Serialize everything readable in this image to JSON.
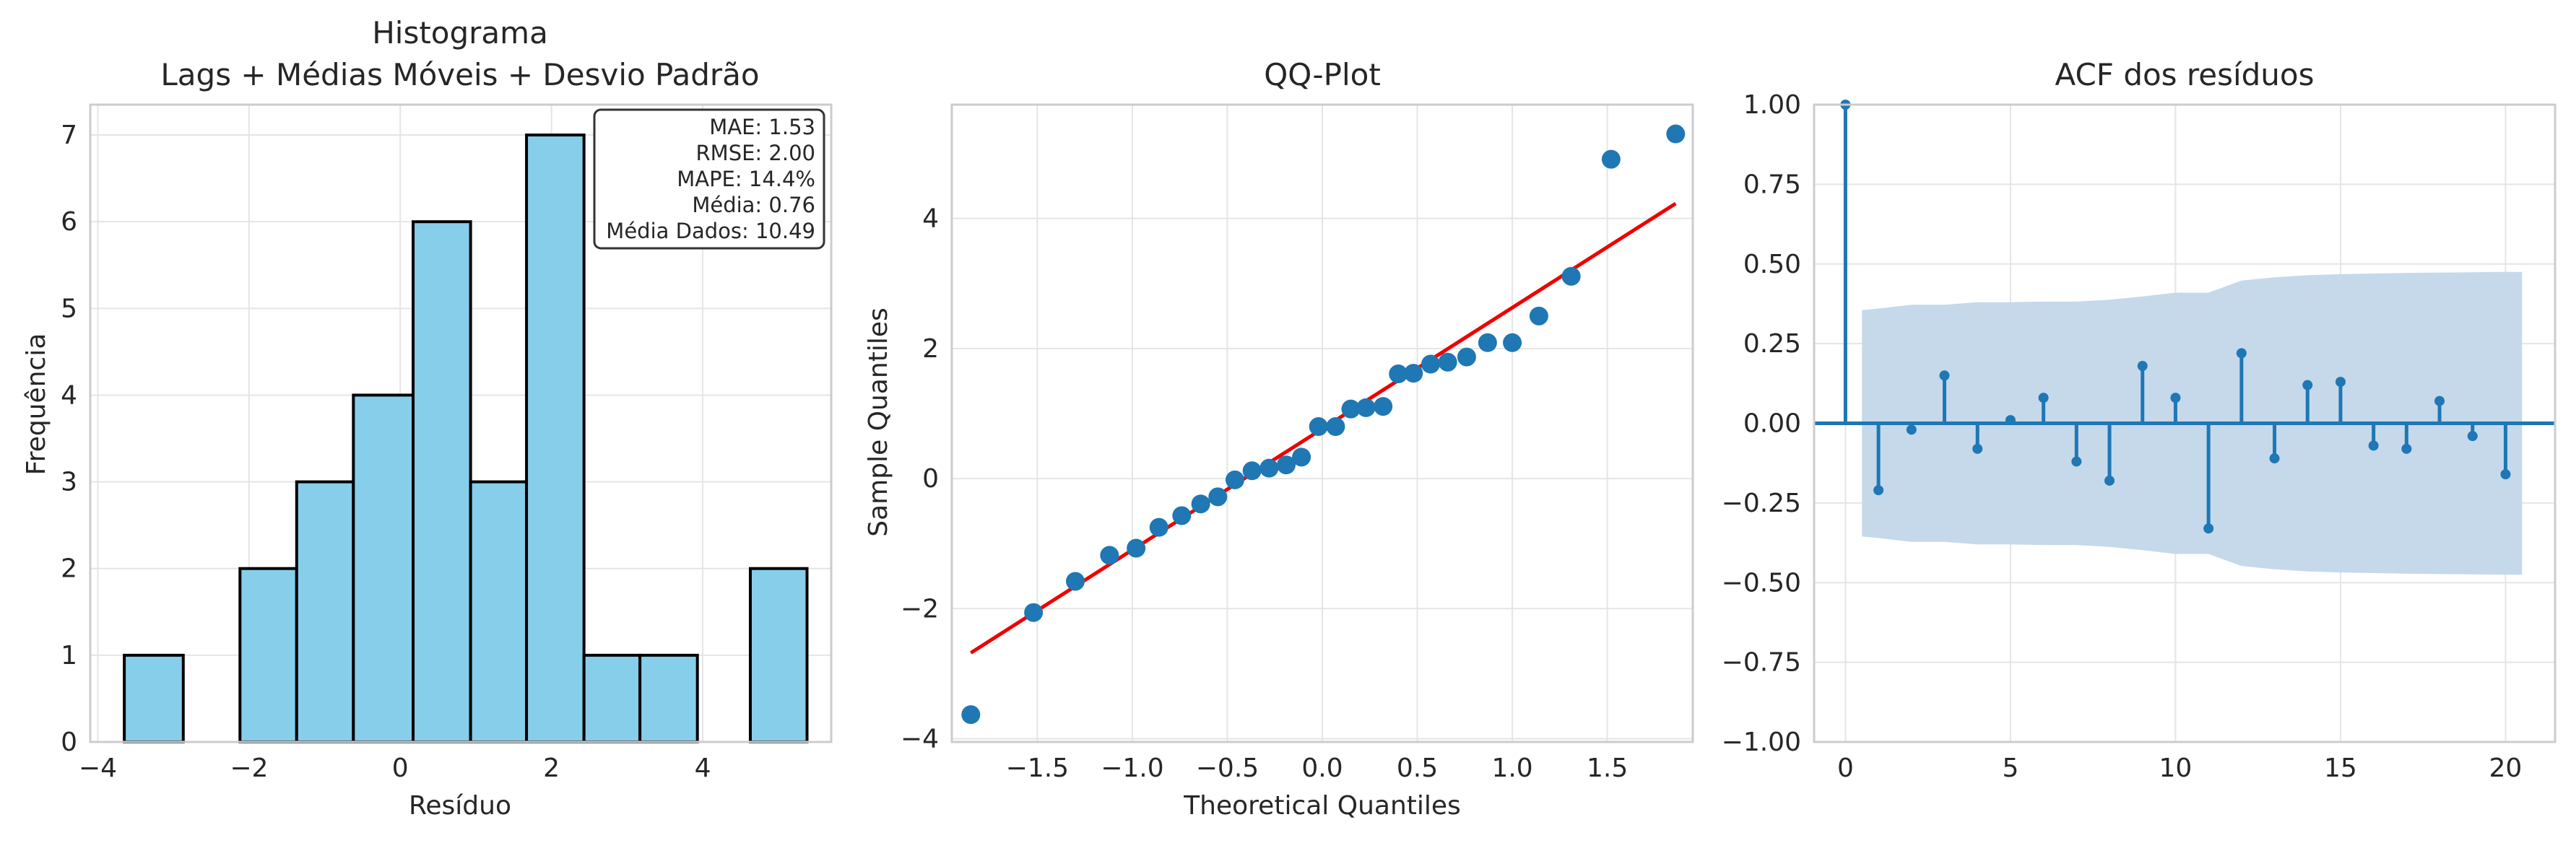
{
  "chart_data": [
    {
      "type": "bar",
      "title_line1": "Histograma",
      "title_line2": "Lags + Médias Móveis + Desvio Padrão",
      "xlabel": "Resíduo",
      "ylabel": "Frequência",
      "bin_edges": [
        -3.7,
        -2.93,
        -2.16,
        -1.39,
        -0.62,
        0.15,
        0.92,
        1.69,
        2.46,
        3.23,
        4.0,
        4.77,
        5.54
      ],
      "bars": [
        {
          "x0": -3.65,
          "x1": -2.87,
          "count": 1
        },
        {
          "x0": -2.12,
          "x1": -1.37,
          "count": 2
        },
        {
          "x0": -1.37,
          "x1": -0.62,
          "count": 3
        },
        {
          "x0": -0.62,
          "x1": 0.17,
          "count": 4
        },
        {
          "x0": 0.17,
          "x1": 0.93,
          "count": 6
        },
        {
          "x0": 0.93,
          "x1": 1.67,
          "count": 3
        },
        {
          "x0": 1.67,
          "x1": 2.43,
          "count": 7
        },
        {
          "x0": 2.43,
          "x1": 3.17,
          "count": 1
        },
        {
          "x0": 3.17,
          "x1": 3.93,
          "count": 1
        },
        {
          "x0": 4.63,
          "x1": 5.38,
          "count": 2
        }
      ],
      "xlim": [
        -4.1,
        5.7
      ],
      "ylim": [
        0,
        7.35
      ],
      "xticks": [
        -4,
        -2,
        0,
        2,
        4
      ],
      "yticks": [
        0,
        1,
        2,
        3,
        4,
        5,
        6,
        7
      ],
      "bar_color": "#87ceeb",
      "edge_color": "#000000",
      "stats_box": {
        "placement": "top-right",
        "lines": [
          "MAE: 1.53",
          "RMSE: 2.00",
          "MAPE: 14.4%",
          "Média: 0.76",
          "Média Dados: 10.49"
        ]
      }
    },
    {
      "type": "scatter",
      "title": "QQ-Plot",
      "xlabel": "Theoretical Quantiles",
      "ylabel": "Sample Quantiles",
      "xlim": [
        -1.95,
        1.95
      ],
      "ylim": [
        -4.05,
        5.75
      ],
      "xticks": [
        -1.5,
        -1.0,
        -0.5,
        0.0,
        0.5,
        1.0,
        1.5
      ],
      "xtick_labels": [
        "−1.5",
        "−1.0",
        "−0.5",
        "0.0",
        "0.5",
        "1.0",
        "1.5"
      ],
      "yticks": [
        -4,
        -2,
        0,
        2,
        4
      ],
      "ytick_labels": [
        "−4",
        "−2",
        "0",
        "2",
        "4"
      ],
      "points": [
        [
          -1.85,
          -3.63
        ],
        [
          -1.52,
          -2.06
        ],
        [
          -1.3,
          -1.58
        ],
        [
          -1.12,
          -1.18
        ],
        [
          -0.98,
          -1.07
        ],
        [
          -0.86,
          -0.75
        ],
        [
          -0.74,
          -0.57
        ],
        [
          -0.64,
          -0.39
        ],
        [
          -0.55,
          -0.28
        ],
        [
          -0.46,
          -0.02
        ],
        [
          -0.37,
          0.12
        ],
        [
          -0.28,
          0.16
        ],
        [
          -0.19,
          0.21
        ],
        [
          -0.11,
          0.33
        ],
        [
          -0.02,
          0.8
        ],
        [
          0.07,
          0.8
        ],
        [
          0.15,
          1.07
        ],
        [
          0.23,
          1.09
        ],
        [
          0.32,
          1.11
        ],
        [
          0.4,
          1.61
        ],
        [
          0.48,
          1.62
        ],
        [
          0.57,
          1.76
        ],
        [
          0.66,
          1.79
        ],
        [
          0.76,
          1.87
        ],
        [
          0.87,
          2.09
        ],
        [
          1.0,
          2.09
        ],
        [
          1.14,
          2.5
        ],
        [
          1.31,
          3.11
        ],
        [
          1.52,
          4.91
        ],
        [
          1.86,
          5.3
        ]
      ],
      "line": {
        "x": [
          -1.85,
          1.86
        ],
        "y": [
          -2.68,
          4.23
        ],
        "color": "#ee0000"
      },
      "point_color": "#1f77b4"
    },
    {
      "type": "stem",
      "title": "ACF dos resíduos",
      "xlim": [
        -0.95,
        21.5
      ],
      "ylim": [
        -1.0,
        1.0
      ],
      "xticks": [
        0,
        5,
        10,
        15,
        20
      ],
      "yticks": [
        -1.0,
        -0.75,
        -0.5,
        -0.25,
        0.0,
        0.25,
        0.5,
        0.75,
        1.0
      ],
      "ytick_labels": [
        "−1.00",
        "−0.75",
        "−0.50",
        "−0.25",
        "0.00",
        "0.25",
        "0.50",
        "0.75",
        "1.00"
      ],
      "lags": [
        0,
        1,
        2,
        3,
        4,
        5,
        6,
        7,
        8,
        9,
        10,
        11,
        12,
        13,
        14,
        15,
        16,
        17,
        18,
        19,
        20
      ],
      "values": [
        1.0,
        -0.21,
        -0.02,
        0.15,
        -0.08,
        0.01,
        0.08,
        -0.12,
        -0.18,
        0.18,
        0.08,
        -0.33,
        0.22,
        -0.11,
        0.12,
        0.13,
        -0.07,
        -0.08,
        0.07,
        -0.04,
        -0.16
      ],
      "confidence_band": {
        "lags": [
          0.5,
          1,
          2,
          3,
          4,
          5,
          6,
          7,
          8,
          9,
          10,
          11,
          12,
          13,
          14,
          15,
          16,
          17,
          18,
          19,
          20,
          20.5
        ],
        "upper": [
          0.355,
          0.36,
          0.372,
          0.372,
          0.38,
          0.38,
          0.382,
          0.382,
          0.388,
          0.398,
          0.41,
          0.41,
          0.448,
          0.458,
          0.465,
          0.468,
          0.47,
          0.472,
          0.473,
          0.474,
          0.475,
          0.475
        ]
      },
      "band_color": "#c5d9eb",
      "stem_color": "#1f77b4"
    }
  ]
}
